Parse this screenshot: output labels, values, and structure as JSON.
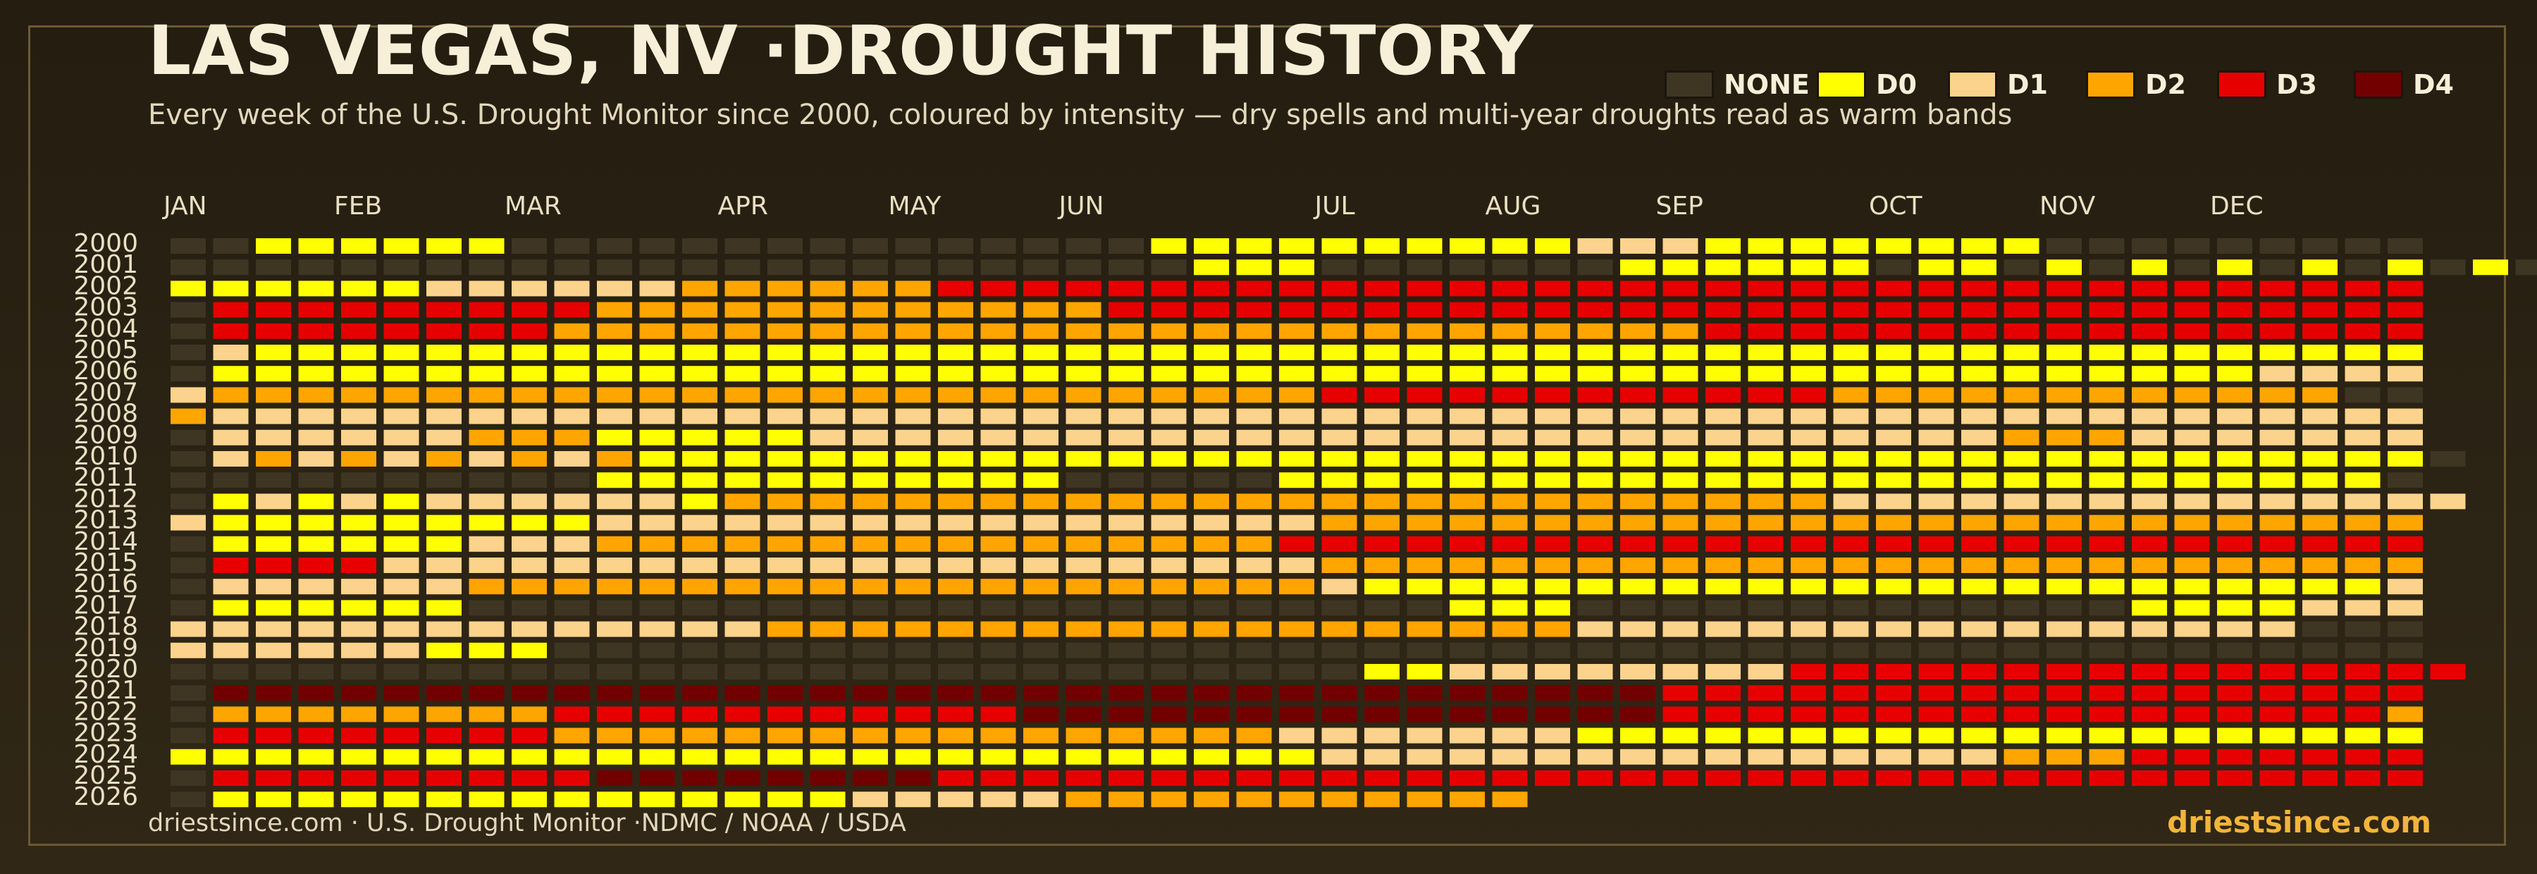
{
  "header": {
    "title": "LAS VEGAS, NV ·DROUGHT HISTORY",
    "subtitle": "Every week of the U.S. Drought Monitor since 2000, coloured by intensity — dry spells and multi-year droughts read as warm bands"
  },
  "footer": {
    "source": "driestsince.com  · U.S. Drought Monitor ·NDMC / NOAA / USDA",
    "brand": "driestsince.com"
  },
  "legend": [
    {
      "label": "NONE",
      "color": "#3e3523"
    },
    {
      "label": "D0",
      "color": "#ffff00"
    },
    {
      "label": "D1",
      "color": "#fcd38c"
    },
    {
      "label": "D2",
      "color": "#ffa500"
    },
    {
      "label": "D3",
      "color": "#e60000"
    },
    {
      "label": "D4",
      "color": "#730000"
    }
  ],
  "chart_data": {
    "type": "heatmap",
    "months": [
      "JAN",
      "FEB",
      "MAR",
      "APR",
      "MAY",
      "JUN",
      "JUL",
      "AUG",
      "SEP",
      "OCT",
      "NOV",
      "DEC"
    ],
    "month_start_week": [
      0,
      4,
      8,
      13,
      17,
      21,
      27,
      31,
      35,
      40,
      44,
      48
    ],
    "years": [
      "2000",
      "2001",
      "2002",
      "2003",
      "2004",
      "2005",
      "2006",
      "2007",
      "2008",
      "2009",
      "2010",
      "2011",
      "2012",
      "2013",
      "2014",
      "2015",
      "2016",
      "2017",
      "2018",
      "2019",
      "2020",
      "2021",
      "2022",
      "2023",
      "2024",
      "2025",
      "2026"
    ],
    "weeks_per_year": 53,
    "levels": [
      "NONE",
      "D0",
      "D1",
      "D2",
      "D3",
      "D4"
    ],
    "encoding_note": "weeks[y] is a list of [count, level] runs; level -1 = no data, 0 = NONE, 1 = D0 ... 5 = D4",
    "weeks": [
      [
        [
          2,
          0
        ],
        [
          6,
          1
        ],
        [
          15,
          0
        ],
        [
          10,
          1
        ],
        [
          3,
          2
        ],
        [
          8,
          1
        ],
        [
          9,
          0
        ]
      ],
      [
        [
          24,
          0
        ],
        [
          3,
          1
        ],
        [
          7,
          0
        ],
        [
          6,
          1
        ],
        [
          1,
          0
        ],
        [
          2,
          1
        ],
        [
          1,
          0
        ],
        [
          1,
          1
        ],
        [
          1,
          0
        ],
        [
          1,
          1
        ],
        [
          1,
          0
        ],
        [
          1,
          1
        ],
        [
          1,
          0
        ],
        [
          1,
          1
        ],
        [
          1,
          0
        ],
        [
          1,
          1
        ],
        [
          1,
          0
        ],
        [
          1,
          1
        ],
        [
          1,
          0
        ],
        [
          1,
          1
        ],
        [
          1,
          0
        ],
        [
          2,
          1
        ],
        [
          1,
          0
        ]
      ],
      [
        [
          6,
          1
        ],
        [
          6,
          2
        ],
        [
          6,
          3
        ],
        [
          9,
          4
        ],
        [
          26,
          4
        ]
      ],
      [
        [
          1,
          0
        ],
        [
          9,
          4
        ],
        [
          12,
          3
        ],
        [
          4,
          4
        ],
        [
          27,
          4
        ]
      ],
      [
        [
          1,
          0
        ],
        [
          8,
          4
        ],
        [
          5,
          3
        ],
        [
          12,
          3
        ],
        [
          10,
          3
        ],
        [
          4,
          4
        ],
        [
          13,
          4
        ]
      ],
      [
        [
          1,
          0
        ],
        [
          1,
          2
        ],
        [
          51,
          1
        ]
      ],
      [
        [
          1,
          0
        ],
        [
          48,
          1
        ],
        [
          4,
          2
        ]
      ],
      [
        [
          1,
          2
        ],
        [
          26,
          3
        ],
        [
          12,
          4
        ],
        [
          12,
          3
        ],
        [
          2,
          0
        ]
      ],
      [
        [
          1,
          3
        ],
        [
          52,
          2
        ]
      ],
      [
        [
          1,
          0
        ],
        [
          6,
          2
        ],
        [
          3,
          3
        ],
        [
          5,
          1
        ],
        [
          28,
          2
        ],
        [
          3,
          3
        ],
        [
          7,
          2
        ]
      ],
      [
        [
          1,
          0
        ],
        [
          1,
          2
        ],
        [
          1,
          3
        ],
        [
          1,
          2
        ],
        [
          1,
          3
        ],
        [
          1,
          2
        ],
        [
          1,
          3
        ],
        [
          1,
          2
        ],
        [
          1,
          3
        ],
        [
          1,
          2
        ],
        [
          1,
          3
        ],
        [
          42,
          1
        ],
        [
          1,
          0
        ]
      ],
      [
        [
          10,
          0
        ],
        [
          1,
          1
        ],
        [
          10,
          1
        ],
        [
          5,
          0
        ],
        [
          26,
          1
        ],
        [
          1,
          0
        ]
      ],
      [
        [
          1,
          0
        ],
        [
          1,
          1
        ],
        [
          1,
          2
        ],
        [
          1,
          1
        ],
        [
          1,
          2
        ],
        [
          1,
          1
        ],
        [
          1,
          2
        ],
        [
          5,
          2
        ],
        [
          1,
          1
        ],
        [
          26,
          3
        ],
        [
          15,
          2
        ]
      ],
      [
        [
          1,
          2
        ],
        [
          9,
          1
        ],
        [
          17,
          2
        ],
        [
          26,
          3
        ]
      ],
      [
        [
          1,
          0
        ],
        [
          6,
          1
        ],
        [
          3,
          2
        ],
        [
          16,
          3
        ],
        [
          1,
          4
        ],
        [
          26,
          4
        ]
      ],
      [
        [
          1,
          0
        ],
        [
          4,
          4
        ],
        [
          22,
          2
        ],
        [
          9,
          3
        ],
        [
          17,
          3
        ]
      ],
      [
        [
          1,
          0
        ],
        [
          6,
          2
        ],
        [
          6,
          3
        ],
        [
          14,
          3
        ],
        [
          1,
          2
        ],
        [
          24,
          1
        ],
        [
          1,
          2
        ]
      ],
      [
        [
          1,
          0
        ],
        [
          6,
          1
        ],
        [
          23,
          0
        ],
        [
          3,
          1
        ],
        [
          13,
          0
        ],
        [
          4,
          1
        ],
        [
          3,
          2
        ]
      ],
      [
        [
          8,
          2
        ],
        [
          6,
          2
        ],
        [
          19,
          3
        ],
        [
          17,
          2
        ],
        [
          3,
          0
        ]
      ],
      [
        [
          6,
          2
        ],
        [
          3,
          1
        ],
        [
          26,
          0
        ],
        [
          18,
          0
        ]
      ],
      [
        [
          28,
          0
        ],
        [
          1,
          1
        ],
        [
          1,
          1
        ],
        [
          4,
          2
        ],
        [
          1,
          2
        ],
        [
          3,
          2
        ],
        [
          16,
          4
        ]
      ],
      [
        [
          1,
          0
        ],
        [
          34,
          5
        ],
        [
          18,
          4
        ]
      ],
      [
        [
          1,
          0
        ],
        [
          8,
          3
        ],
        [
          8,
          4
        ],
        [
          3,
          4
        ],
        [
          14,
          5
        ],
        [
          1,
          5
        ],
        [
          14,
          4
        ],
        [
          3,
          4
        ],
        [
          1,
          3
        ]
      ],
      [
        [
          1,
          0
        ],
        [
          8,
          4
        ],
        [
          17,
          3
        ],
        [
          4,
          2
        ],
        [
          2,
          2
        ],
        [
          1,
          2
        ],
        [
          7,
          1
        ],
        [
          13,
          1
        ]
      ],
      [
        [
          15,
          1
        ],
        [
          12,
          1
        ],
        [
          8,
          2
        ],
        [
          5,
          2
        ],
        [
          3,
          2
        ],
        [
          3,
          3
        ],
        [
          7,
          4
        ]
      ],
      [
        [
          1,
          0
        ],
        [
          9,
          4
        ],
        [
          8,
          5
        ],
        [
          8,
          4
        ],
        [
          8,
          4
        ],
        [
          9,
          4
        ],
        [
          10,
          4
        ]
      ],
      [
        [
          1,
          0
        ],
        [
          1,
          1
        ],
        [
          14,
          1
        ],
        [
          5,
          2
        ],
        [
          11,
          3
        ],
        [
          21,
          -1
        ]
      ]
    ]
  }
}
